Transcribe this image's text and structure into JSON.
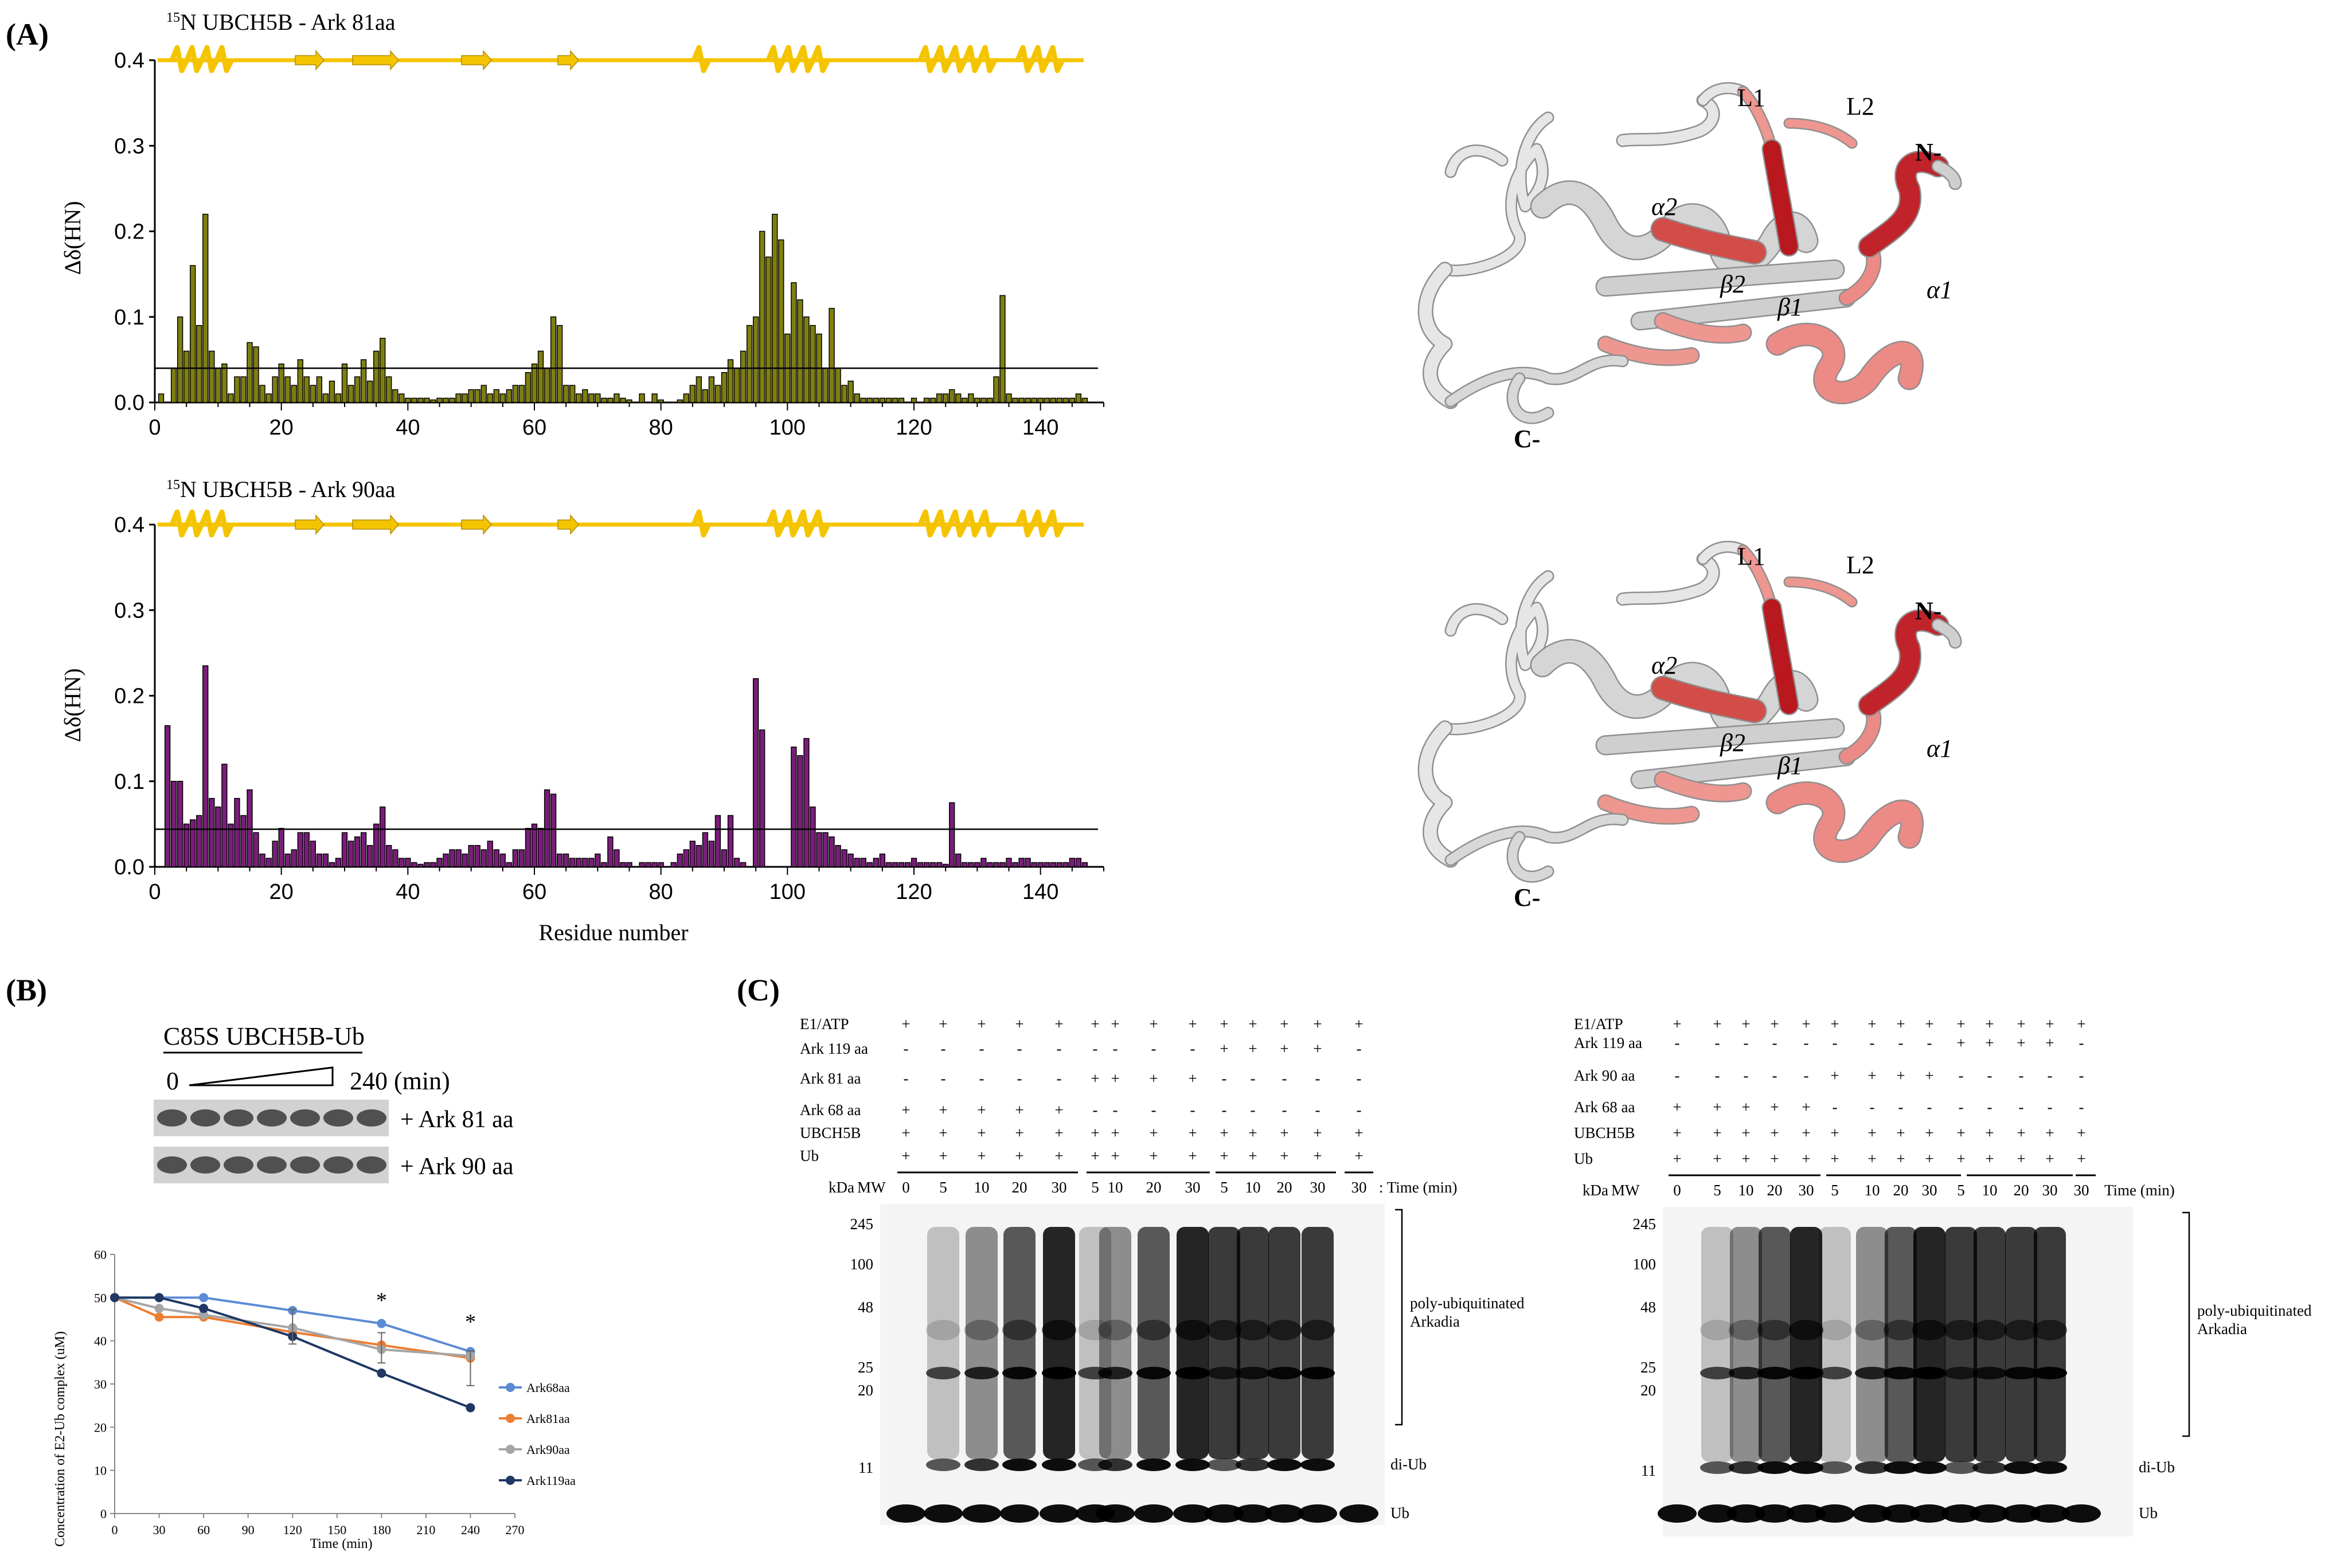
{
  "panels": {
    "a": "(A)",
    "b": "(B)",
    "c": "(C)"
  },
  "panel_a": {
    "top": {
      "title_sup": "15",
      "title": "N UBCH5B - Ark 81aa",
      "ylabel": "Δδ(HN)",
      "yticks": [
        "0.4",
        "0.3",
        "0.2",
        "0.1",
        "0.0"
      ],
      "xticks": [
        "0",
        "20",
        "40",
        "60",
        "80",
        "100",
        "120",
        "140"
      ],
      "bar_color": "#7f7f10"
    },
    "bottom": {
      "title_sup": "15",
      "title": "N UBCH5B - Ark 90aa",
      "ylabel": "Δδ(HN)",
      "yticks": [
        "0.4",
        "0.3",
        "0.2",
        "0.1",
        "0.0"
      ],
      "xticks": [
        "0",
        "20",
        "40",
        "60",
        "80",
        "100",
        "120",
        "140"
      ],
      "xlabel": "Residue number",
      "bar_color": "#7a1d7a"
    },
    "structure_labels": {
      "L1": "L1",
      "L2": "L2",
      "N": "N-",
      "C": "C-",
      "a1": "α1",
      "a2": "α2",
      "b1": "β1",
      "b2": "β2"
    }
  },
  "chart_data": [
    {
      "type": "bar",
      "title": "15N UBCH5B - Ark 81aa",
      "xlabel": "Residue number",
      "ylabel": "Δδ(HN)",
      "ylim": [
        0,
        0.4
      ],
      "xlim": [
        0,
        150
      ],
      "threshold": 0.04,
      "x": [
        1,
        2,
        3,
        4,
        5,
        6,
        7,
        8,
        9,
        10,
        11,
        12,
        13,
        14,
        15,
        16,
        17,
        18,
        19,
        20,
        21,
        22,
        23,
        24,
        25,
        26,
        27,
        28,
        29,
        30,
        31,
        32,
        33,
        34,
        35,
        36,
        37,
        38,
        39,
        40,
        41,
        42,
        43,
        44,
        45,
        46,
        47,
        48,
        49,
        50,
        51,
        52,
        53,
        54,
        55,
        56,
        57,
        58,
        59,
        60,
        61,
        62,
        63,
        64,
        65,
        66,
        67,
        68,
        69,
        70,
        71,
        72,
        73,
        74,
        75,
        76,
        77,
        78,
        79,
        80,
        81,
        82,
        83,
        84,
        85,
        86,
        87,
        88,
        89,
        90,
        91,
        92,
        93,
        94,
        95,
        96,
        97,
        98,
        99,
        100,
        101,
        102,
        103,
        104,
        105,
        106,
        107,
        108,
        109,
        110,
        111,
        112,
        113,
        114,
        115,
        116,
        117,
        118,
        119,
        120,
        121,
        122,
        123,
        124,
        125,
        126,
        127,
        128,
        129,
        130,
        131,
        132,
        133,
        134,
        135,
        136,
        137,
        138,
        139,
        140,
        141,
        142,
        143,
        144,
        145,
        146,
        147
      ],
      "values": [
        0.01,
        0.0,
        0.04,
        0.1,
        0.06,
        0.16,
        0.09,
        0.22,
        0.06,
        0.04,
        0.045,
        0.01,
        0.03,
        0.03,
        0.07,
        0.065,
        0.02,
        0.01,
        0.03,
        0.045,
        0.03,
        0.02,
        0.05,
        0.03,
        0.02,
        0.03,
        0.01,
        0.025,
        0.01,
        0.045,
        0.02,
        0.03,
        0.05,
        0.025,
        0.06,
        0.075,
        0.03,
        0.015,
        0.01,
        0.005,
        0.005,
        0.005,
        0.005,
        0.003,
        0.005,
        0.005,
        0.005,
        0.01,
        0.01,
        0.015,
        0.015,
        0.02,
        0.01,
        0.015,
        0.01,
        0.015,
        0.02,
        0.02,
        0.035,
        0.045,
        0.06,
        0.04,
        0.1,
        0.09,
        0.02,
        0.02,
        0.01,
        0.015,
        0.01,
        0.01,
        0.005,
        0.005,
        0.01,
        0.005,
        0.003,
        0.0,
        0.01,
        0.0,
        0.01,
        0.003,
        0.0,
        0.0,
        0.003,
        0.01,
        0.02,
        0.03,
        0.015,
        0.03,
        0.02,
        0.035,
        0.05,
        0.04,
        0.06,
        0.09,
        0.1,
        0.2,
        0.17,
        0.22,
        0.19,
        0.08,
        0.14,
        0.12,
        0.1,
        0.09,
        0.08,
        0.04,
        0.11,
        0.04,
        0.02,
        0.025,
        0.01,
        0.005,
        0.005,
        0.005,
        0.005,
        0.005,
        0.005,
        0.005,
        0.0,
        0.005,
        0.0,
        0.005,
        0.005,
        0.01,
        0.01,
        0.015,
        0.01,
        0.005,
        0.01,
        0.005,
        0.005,
        0.005,
        0.03,
        0.125,
        0.01,
        0.005,
        0.005,
        0.005,
        0.005,
        0.005,
        0.005,
        0.005,
        0.005,
        0.005,
        0.005,
        0.01,
        0.005
      ]
    },
    {
      "type": "bar",
      "title": "15N UBCH5B - Ark 90aa",
      "xlabel": "Residue number",
      "ylabel": "Δδ(HN)",
      "ylim": [
        0,
        0.4
      ],
      "xlim": [
        0,
        150
      ],
      "threshold": 0.044,
      "x": [
        1,
        2,
        3,
        4,
        5,
        6,
        7,
        8,
        9,
        10,
        11,
        12,
        13,
        14,
        15,
        16,
        17,
        18,
        19,
        20,
        21,
        22,
        23,
        24,
        25,
        26,
        27,
        28,
        29,
        30,
        31,
        32,
        33,
        34,
        35,
        36,
        37,
        38,
        39,
        40,
        41,
        42,
        43,
        44,
        45,
        46,
        47,
        48,
        49,
        50,
        51,
        52,
        53,
        54,
        55,
        56,
        57,
        58,
        59,
        60,
        61,
        62,
        63,
        64,
        65,
        66,
        67,
        68,
        69,
        70,
        71,
        72,
        73,
        74,
        75,
        76,
        77,
        78,
        79,
        80,
        81,
        82,
        83,
        84,
        85,
        86,
        87,
        88,
        89,
        90,
        91,
        92,
        93,
        94,
        95,
        96,
        97,
        98,
        99,
        100,
        101,
        102,
        103,
        104,
        105,
        106,
        107,
        108,
        109,
        110,
        111,
        112,
        113,
        114,
        115,
        116,
        117,
        118,
        119,
        120,
        121,
        122,
        123,
        124,
        125,
        126,
        127,
        128,
        129,
        130,
        131,
        132,
        133,
        134,
        135,
        136,
        137,
        138,
        139,
        140,
        141,
        142,
        143,
        144,
        145,
        146,
        147
      ],
      "values": [
        0.0,
        0.165,
        0.1,
        0.1,
        0.05,
        0.055,
        0.06,
        0.235,
        0.08,
        0.07,
        0.12,
        0.05,
        0.08,
        0.06,
        0.09,
        0.04,
        0.015,
        0.01,
        0.03,
        0.045,
        0.015,
        0.02,
        0.04,
        0.04,
        0.03,
        0.015,
        0.015,
        0.005,
        0.01,
        0.04,
        0.03,
        0.035,
        0.04,
        0.025,
        0.05,
        0.07,
        0.025,
        0.02,
        0.01,
        0.01,
        0.005,
        0.003,
        0.005,
        0.005,
        0.01,
        0.015,
        0.02,
        0.02,
        0.015,
        0.025,
        0.025,
        0.02,
        0.03,
        0.02,
        0.015,
        0.005,
        0.02,
        0.02,
        0.045,
        0.05,
        0.045,
        0.09,
        0.085,
        0.015,
        0.015,
        0.01,
        0.01,
        0.01,
        0.01,
        0.015,
        0.005,
        0.035,
        0.02,
        0.005,
        0.005,
        0.0,
        0.005,
        0.005,
        0.005,
        0.005,
        0.0,
        0.005,
        0.015,
        0.02,
        0.03,
        0.025,
        0.04,
        0.03,
        0.06,
        0.02,
        0.06,
        0.01,
        0.005,
        0.0,
        0.22,
        0.16,
        0.0,
        0.0,
        0.0,
        0.0,
        0.14,
        0.13,
        0.15,
        0.07,
        0.04,
        0.04,
        0.035,
        0.025,
        0.02,
        0.015,
        0.01,
        0.01,
        0.005,
        0.01,
        0.015,
        0.005,
        0.005,
        0.005,
        0.005,
        0.01,
        0.005,
        0.005,
        0.005,
        0.005,
        0.003,
        0.075,
        0.015,
        0.005,
        0.005,
        0.005,
        0.01,
        0.005,
        0.005,
        0.005,
        0.01,
        0.005,
        0.01,
        0.01,
        0.005,
        0.005,
        0.005,
        0.005,
        0.005,
        0.005,
        0.01,
        0.01,
        0.005
      ]
    },
    {
      "type": "line",
      "xlabel": "Time (min)",
      "ylabel": "Concentration of E2-Ub complex (uM)",
      "xlim": [
        0,
        270
      ],
      "ylim": [
        0,
        60
      ],
      "xticks": [
        "0",
        "30",
        "60",
        "90",
        "120",
        "150",
        "180",
        "210",
        "240",
        "270"
      ],
      "yticks": [
        "60",
        "50",
        "40",
        "30",
        "20",
        "10",
        "0"
      ],
      "x": [
        0,
        30,
        60,
        120,
        180,
        240
      ],
      "series": [
        {
          "name": "Ark68aa",
          "color": "#5b8bd4",
          "values": [
            50,
            50,
            50,
            47,
            44,
            37.5
          ]
        },
        {
          "name": "Ark81aa",
          "color": "#ed7d31",
          "values": [
            50,
            45.5,
            45.5,
            42,
            39,
            36
          ]
        },
        {
          "name": "Ark90aa",
          "color": "#a5a5a5",
          "values": [
            50,
            47.5,
            46,
            43,
            38,
            36.5
          ]
        },
        {
          "name": "Ark119aa",
          "color": "#1f3864",
          "values": [
            50,
            50,
            47.5,
            41,
            32.5,
            24.5
          ]
        }
      ],
      "errors": [
        0,
        0,
        0,
        4,
        3.5,
        4
      ],
      "annotations": [
        "*",
        "*"
      ]
    }
  ],
  "panel_b": {
    "header": "C85S UBCH5B-Ub",
    "range_start": "0",
    "range_end": "240 (min)",
    "row1": "+ Ark 81 aa",
    "row2": "+ Ark 90 aa"
  },
  "panel_c": {
    "left": {
      "rows": [
        {
          "label": "E1/ATP",
          "signs": [
            "+",
            "+",
            "+",
            "+",
            "+",
            "+",
            "+",
            "+",
            "+",
            "+",
            "+",
            "+",
            "+",
            "+"
          ]
        },
        {
          "label": "Ark 119 aa",
          "signs": [
            "-",
            "-",
            "-",
            "-",
            "-",
            "-",
            "-",
            "-",
            "-",
            "+",
            "+",
            "+",
            "+",
            "-"
          ]
        },
        {
          "label": "Ark 81 aa",
          "signs": [
            "-",
            "-",
            "-",
            "-",
            "-",
            "+",
            "+",
            "+",
            "+",
            "-",
            "-",
            "-",
            "-",
            "-"
          ]
        },
        {
          "label": "Ark 68 aa",
          "signs": [
            "+",
            "+",
            "+",
            "+",
            "+",
            "-",
            "-",
            "-",
            "-",
            "-",
            "-",
            "-",
            "-",
            "-"
          ]
        },
        {
          "label": "UBCH5B",
          "signs": [
            "+",
            "+",
            "+",
            "+",
            "+",
            "+",
            "+",
            "+",
            "+",
            "+",
            "+",
            "+",
            "+",
            "+"
          ]
        },
        {
          "label": "Ub",
          "signs": [
            "+",
            "+",
            "+",
            "+",
            "+",
            "+",
            "+",
            "+",
            "+",
            "+",
            "+",
            "+",
            "+",
            "+"
          ]
        }
      ],
      "kda": "kDa",
      "mw": "MW",
      "times": [
        "0",
        "5",
        "10",
        "20",
        "30",
        "5",
        "10",
        "20",
        "30",
        "5",
        "10",
        "20",
        "30",
        "30"
      ],
      "time_label": ": Time (min)",
      "markers": [
        "245",
        "100",
        "48",
        "25",
        "20",
        "11"
      ],
      "annot_poly": [
        "poly-ubiquitinated",
        "Arkadia"
      ],
      "annot_diub": "di-Ub",
      "annot_ub": "Ub"
    },
    "right": {
      "rows": [
        {
          "label": "E1/ATP",
          "signs": [
            "+",
            "+",
            "+",
            "+",
            "+",
            "+",
            "+",
            "+",
            "+",
            "+",
            "+",
            "+",
            "+",
            "+"
          ]
        },
        {
          "label": "Ark 119 aa",
          "signs": [
            "-",
            "-",
            "-",
            "-",
            "-",
            "-",
            "-",
            "-",
            "-",
            "+",
            "+",
            "+",
            "+",
            "-"
          ]
        },
        {
          "label": "Ark 90 aa",
          "signs": [
            "-",
            "-",
            "-",
            "-",
            "-",
            "+",
            "+",
            "+",
            "+",
            "-",
            "-",
            "-",
            "-",
            "-"
          ]
        },
        {
          "label": "Ark 68 aa",
          "signs": [
            "+",
            "+",
            "+",
            "+",
            "+",
            "-",
            "-",
            "-",
            "-",
            "-",
            "-",
            "-",
            "-",
            "-"
          ]
        },
        {
          "label": "UBCH5B",
          "signs": [
            "+",
            "+",
            "+",
            "+",
            "+",
            "+",
            "+",
            "+",
            "+",
            "+",
            "+",
            "+",
            "+",
            "+"
          ]
        },
        {
          "label": "Ub",
          "signs": [
            "+",
            "+",
            "+",
            "+",
            "+",
            "+",
            "+",
            "+",
            "+",
            "+",
            "+",
            "+",
            "+",
            "+"
          ]
        }
      ],
      "kda": "kDa",
      "mw": "MW",
      "times": [
        "0",
        "5",
        "10",
        "20",
        "30",
        "5",
        "10",
        "20",
        "30",
        "5",
        "10",
        "20",
        "30",
        "30"
      ],
      "time_label": "Time (min)",
      "markers": [
        "245",
        "100",
        "48",
        "25",
        "20",
        "11"
      ],
      "annot_poly": [
        "poly-ubiquitinated",
        "Arkadia"
      ],
      "annot_diub": "di-Ub",
      "annot_ub": "Ub"
    }
  }
}
